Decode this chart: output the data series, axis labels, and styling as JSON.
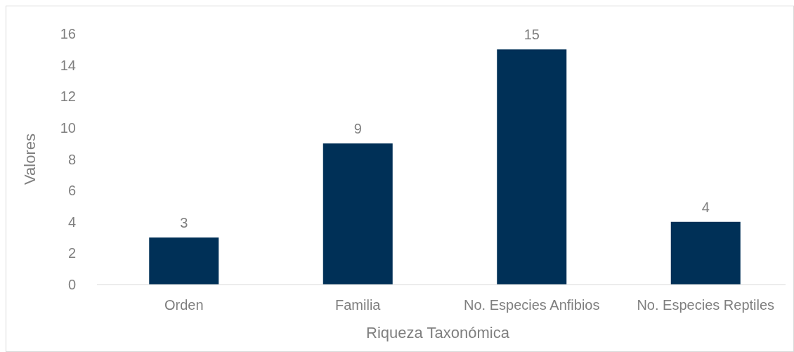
{
  "chart_data": {
    "type": "bar",
    "xlabel": "Riqueza Taxonómica",
    "ylabel": "Valores",
    "categories": [
      "Orden",
      "Familia",
      "No. Especies Anfibios",
      "No. Especies Reptiles"
    ],
    "values": [
      3,
      9,
      15,
      4
    ],
    "color": "#003057",
    "ylim": [
      0,
      16
    ],
    "yticks": [
      0,
      2,
      4,
      6,
      8,
      10,
      12,
      14,
      16
    ],
    "data_labels": true,
    "grid": false
  }
}
